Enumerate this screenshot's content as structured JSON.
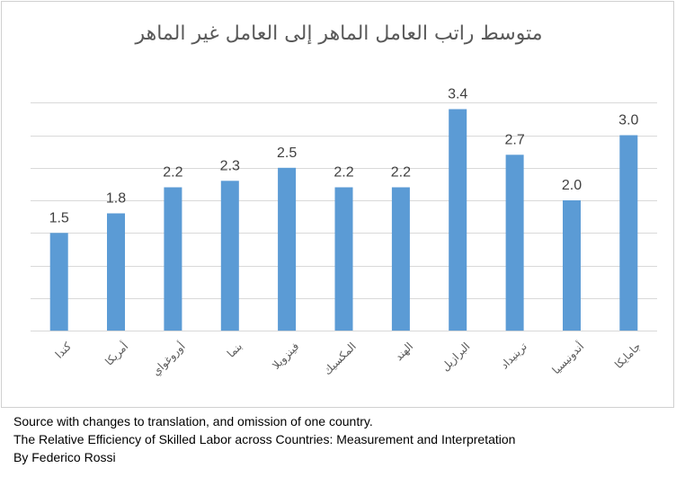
{
  "chart_data": {
    "type": "bar",
    "title": "متوسط راتب العامل الماهر إلى العامل غير الماهر",
    "categories": [
      "كندا",
      "أمريكا",
      "أوروغواي",
      "بنما",
      "فينزويلا",
      "المكسيك",
      "الهند",
      "البرازيل",
      "ترينيداد",
      "أندونيسيا",
      "جامايكا"
    ],
    "values": [
      1.5,
      1.8,
      2.2,
      2.3,
      2.5,
      2.2,
      2.2,
      3.4,
      2.7,
      2.0,
      3.0
    ],
    "data_labels": [
      "1.5",
      "1.8",
      "2.2",
      "2.3",
      "2.5",
      "2.2",
      "2.2",
      "3.4",
      "2.7",
      "2.0",
      "3.0"
    ],
    "xlabel": "",
    "ylabel": "",
    "ylim": [
      0,
      3.5
    ],
    "ytick_step": 0.5,
    "gridlines": true,
    "y_axis_labels_shown": false,
    "legend": "none",
    "bar_color": "#5B9BD5",
    "gridline_color": "#D9D9D9"
  },
  "notes": {
    "line1": "Source with changes to translation, and omission of one country.",
    "line2": "The Relative Efficiency of Skilled Labor across Countries: Measurement and Interpretation",
    "line3": "By Federico Rossi"
  }
}
